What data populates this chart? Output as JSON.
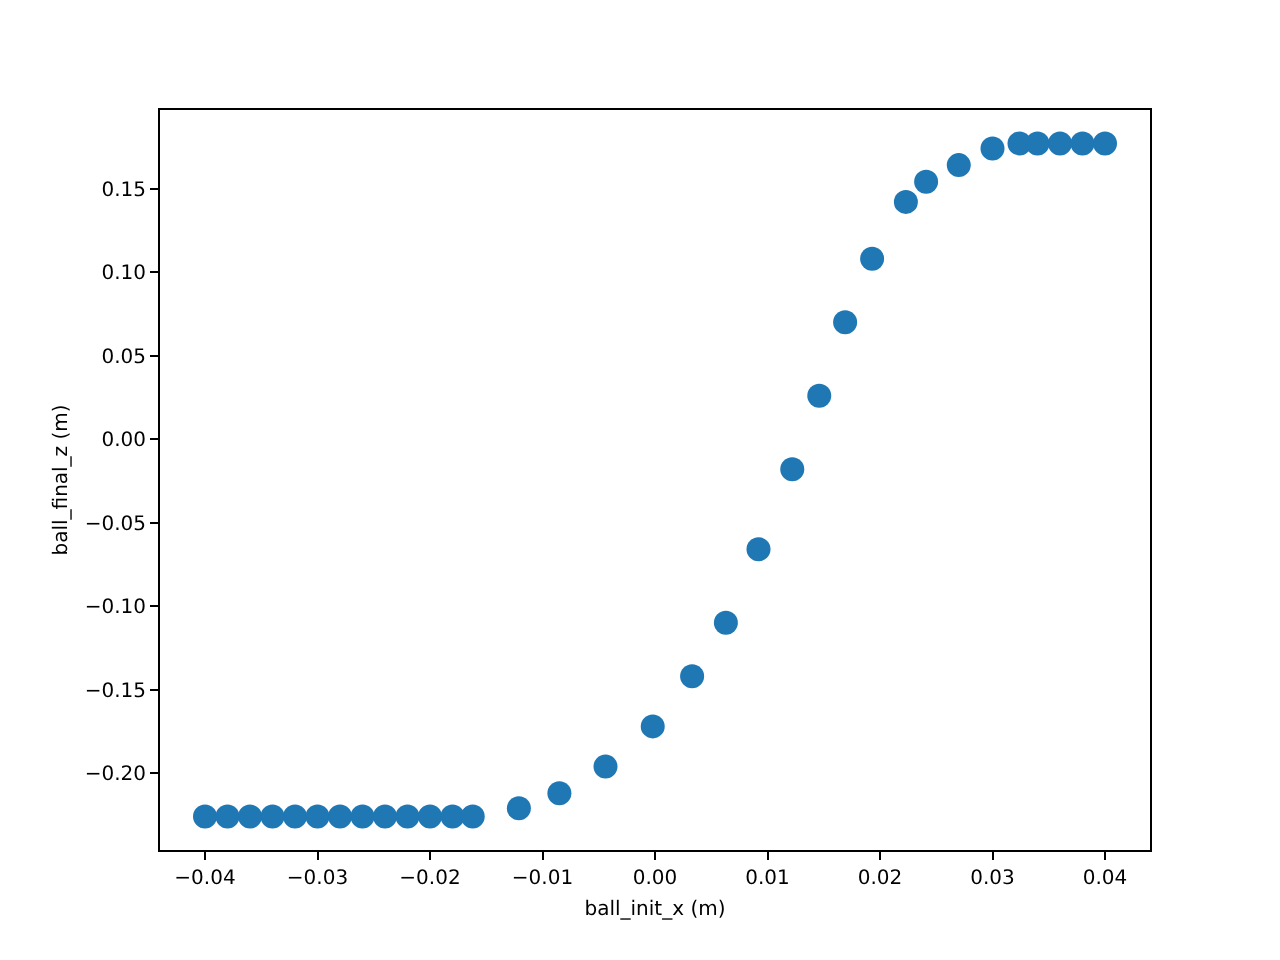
{
  "chart_data": {
    "type": "scatter",
    "xlabel": "ball_init_x (m)",
    "ylabel": "ball_final_z (m)",
    "marker": "circle",
    "grid": false,
    "x": [
      -0.04,
      -0.038,
      -0.036,
      -0.034,
      -0.032,
      -0.03,
      -0.028,
      -0.026,
      -0.024,
      -0.022,
      -0.02,
      -0.018,
      -0.0162,
      -0.0121,
      -0.0085,
      -0.0044,
      -0.0002,
      0.0033,
      0.0063,
      0.0092,
      0.0122,
      0.0146,
      0.0169,
      0.0193,
      0.0223,
      0.0241,
      0.027,
      0.03,
      0.0324,
      0.034,
      0.036,
      0.038,
      0.04
    ],
    "series": [
      {
        "color": "#1f77b4",
        "values": [
          -0.226,
          -0.226,
          -0.226,
          -0.226,
          -0.226,
          -0.226,
          -0.226,
          -0.226,
          -0.226,
          -0.226,
          -0.226,
          -0.226,
          -0.226,
          -0.221,
          -0.212,
          -0.196,
          -0.172,
          -0.142,
          -0.11,
          -0.066,
          -0.018,
          0.026,
          0.07,
          0.108,
          0.142,
          0.154,
          0.164,
          0.174,
          0.177,
          0.177,
          0.177,
          0.177,
          0.177
        ]
      }
    ],
    "xlim": [
      -0.044,
      0.044
    ],
    "ylim": [
      -0.246,
      0.197
    ],
    "xticks": [
      {
        "value": -0.04,
        "label": "−0.04"
      },
      {
        "value": -0.03,
        "label": "−0.03"
      },
      {
        "value": -0.02,
        "label": "−0.02"
      },
      {
        "value": -0.01,
        "label": "−0.01"
      },
      {
        "value": 0,
        "label": "0.00"
      },
      {
        "value": 0.01,
        "label": "0.01"
      },
      {
        "value": 0.02,
        "label": "0.02"
      },
      {
        "value": 0.03,
        "label": "0.03"
      },
      {
        "value": 0.04,
        "label": "0.04"
      }
    ],
    "yticks": [
      {
        "value": -0.2,
        "label": "−0.20"
      },
      {
        "value": -0.15,
        "label": "−0.15"
      },
      {
        "value": -0.1,
        "label": "−0.10"
      },
      {
        "value": -0.05,
        "label": "−0.05"
      },
      {
        "value": 0,
        "label": "0.00"
      },
      {
        "value": 0.05,
        "label": "0.05"
      },
      {
        "value": 0.1,
        "label": "0.10"
      },
      {
        "value": 0.15,
        "label": "0.15"
      }
    ]
  }
}
